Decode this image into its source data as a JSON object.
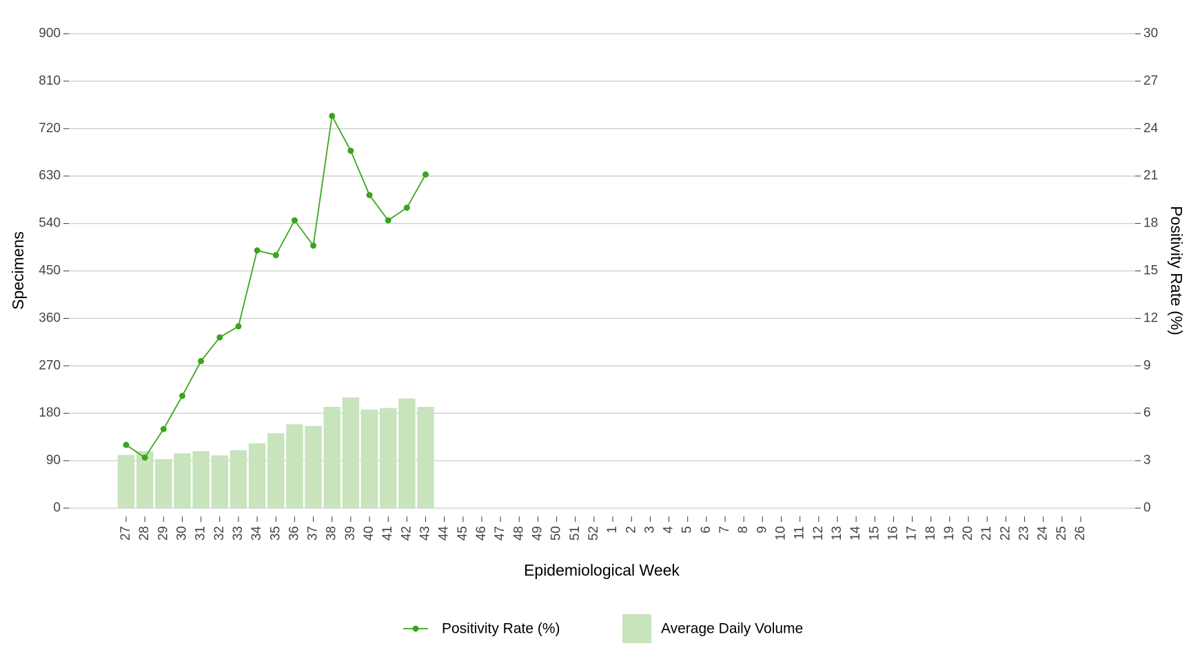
{
  "chart_data": {
    "type": "bar",
    "x_label": "Epidemiological Week",
    "y_label": "Specimens",
    "y2_label": "Positivity Rate (%)",
    "categories": [
      "27",
      "28",
      "29",
      "30",
      "31",
      "32",
      "33",
      "34",
      "35",
      "36",
      "37",
      "38",
      "39",
      "40",
      "41",
      "42",
      "43",
      "44",
      "45",
      "46",
      "47",
      "48",
      "49",
      "50",
      "51",
      "52",
      "1",
      "2",
      "3",
      "4",
      "5",
      "6",
      "7",
      "8",
      "9",
      "10",
      "11",
      "12",
      "13",
      "14",
      "15",
      "16",
      "17",
      "18",
      "19",
      "20",
      "21",
      "22",
      "23",
      "24",
      "25",
      "26"
    ],
    "series": [
      {
        "name": "Positivity Rate (%)",
        "type": "line",
        "axis": "y2",
        "color": "#3aa51c",
        "values": [
          4.0,
          3.2,
          5.0,
          7.1,
          9.3,
          10.8,
          11.5,
          16.3,
          16.0,
          18.2,
          16.6,
          24.8,
          22.6,
          19.8,
          18.2,
          19.0,
          21.1,
          null,
          null,
          null,
          null,
          null,
          null,
          null,
          null,
          null,
          null,
          null,
          null,
          null,
          null,
          null,
          null,
          null,
          null,
          null,
          null,
          null,
          null,
          null,
          null,
          null,
          null,
          null,
          null,
          null,
          null,
          null,
          null,
          null,
          null,
          null
        ]
      },
      {
        "name": "Average Daily Volume",
        "type": "bar",
        "axis": "y",
        "color": "#c7e4bd",
        "values": [
          101,
          108,
          93,
          104,
          108,
          100,
          110,
          123,
          142,
          159,
          156,
          192,
          210,
          187,
          190,
          208,
          192,
          null,
          null,
          null,
          null,
          null,
          null,
          null,
          null,
          null,
          null,
          null,
          null,
          null,
          null,
          null,
          null,
          null,
          null,
          null,
          null,
          null,
          null,
          null,
          null,
          null,
          null,
          null,
          null,
          null,
          null,
          null,
          null,
          null,
          null,
          null
        ]
      }
    ],
    "ylim": [
      0,
      900
    ],
    "yticks": [
      0,
      90,
      180,
      270,
      360,
      450,
      540,
      630,
      720,
      810,
      900
    ],
    "y2lim": [
      0,
      30
    ],
    "y2ticks": [
      0,
      3,
      6,
      9,
      12,
      15,
      18,
      21,
      24,
      27,
      30
    ],
    "grid": true,
    "legend": "bottom"
  }
}
